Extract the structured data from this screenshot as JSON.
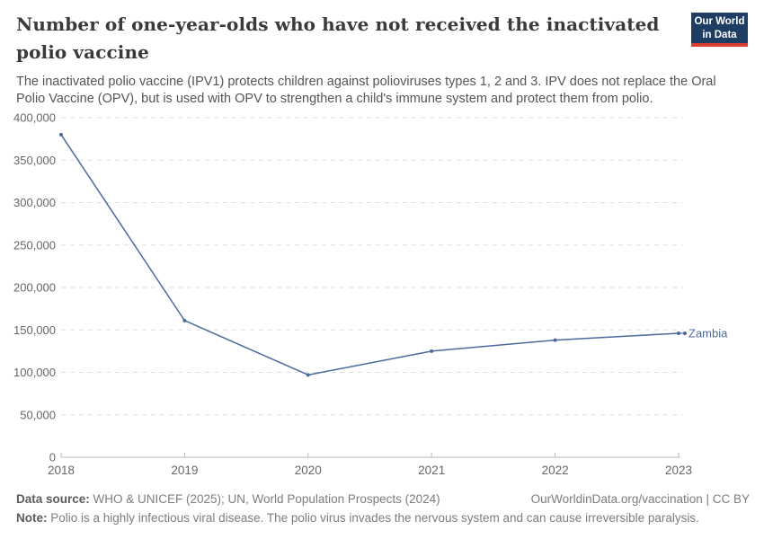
{
  "header": {
    "title": "Number of one-year-olds who have not received the inactivated polio vaccine",
    "subtitle": "The inactivated polio vaccine (IPV1) protects children against polioviruses types 1, 2 and 3. IPV does not replace the Oral Polio Vaccine (OPV), but is used with OPV to strengthen a child's immune system and protect them from polio.",
    "logo": {
      "line1": "Our World",
      "line2": "in Data"
    }
  },
  "chart_data": {
    "type": "line",
    "title": "Number of one-year-olds who have not received the inactivated polio vaccine",
    "x": [
      2018,
      2019,
      2020,
      2021,
      2022,
      2023
    ],
    "x_tick_labels": [
      "2018",
      "2019",
      "2020",
      "2021",
      "2022",
      "2023"
    ],
    "series": [
      {
        "name": "Zambia",
        "color": "#4c6a9c",
        "values": [
          380000,
          161000,
          97000,
          125000,
          138000,
          146000
        ]
      }
    ],
    "ylim": [
      0,
      400000
    ],
    "yticks": [
      {
        "value": 0,
        "label": "0"
      },
      {
        "value": 50000,
        "label": "50,000"
      },
      {
        "value": 100000,
        "label": "100,000"
      },
      {
        "value": 150000,
        "label": "150,000"
      },
      {
        "value": 200000,
        "label": "200,000"
      },
      {
        "value": 250000,
        "label": "250,000"
      },
      {
        "value": 300000,
        "label": "300,000"
      },
      {
        "value": 350000,
        "label": "350,000"
      },
      {
        "value": 400000,
        "label": "400,000"
      }
    ],
    "xlabel": "",
    "ylabel": "",
    "grid": "horizontal-dashed",
    "legend_position": "end-of-line-label"
  },
  "footer": {
    "data_source_label": "Data source:",
    "data_source_text": " WHO & UNICEF (2025); UN, World Population Prospects (2024)",
    "attribution": "OurWorldinData.org/vaccination | CC BY",
    "note_label": "Note:",
    "note_text": " Polio is a highly infectious viral disease. The polio virus invades the nervous system and can cause irreversible paralysis."
  },
  "colors": {
    "series_line": "#4c6a9c",
    "gridline": "#dedede",
    "axis": "#b9b9b9",
    "tick_text": "#666666",
    "title_text": "#3a3a3a",
    "subtitle_text": "#555555",
    "footer_text": "#7d7d7d",
    "logo_background": "#1d3d63",
    "logo_accent": "#dc3c32"
  }
}
